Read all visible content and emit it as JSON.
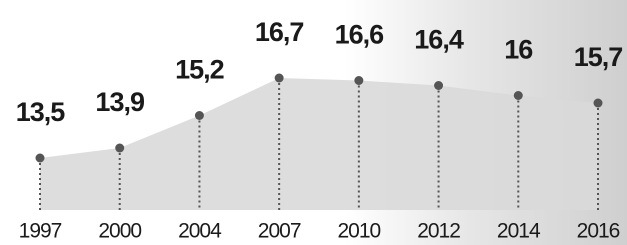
{
  "chart_data": {
    "type": "area",
    "categories": [
      "1997",
      "2000",
      "2004",
      "2007",
      "2010",
      "2012",
      "2014",
      "2016"
    ],
    "values": [
      13.5,
      13.9,
      15.2,
      16.7,
      16.6,
      16.4,
      16,
      15.7
    ],
    "value_labels": [
      "13,5",
      "13,9",
      "15,2",
      "16,7",
      "16,6",
      "16,4",
      "16",
      "15,7"
    ],
    "color": "#d9d9d9",
    "marker_color": "#555555"
  }
}
